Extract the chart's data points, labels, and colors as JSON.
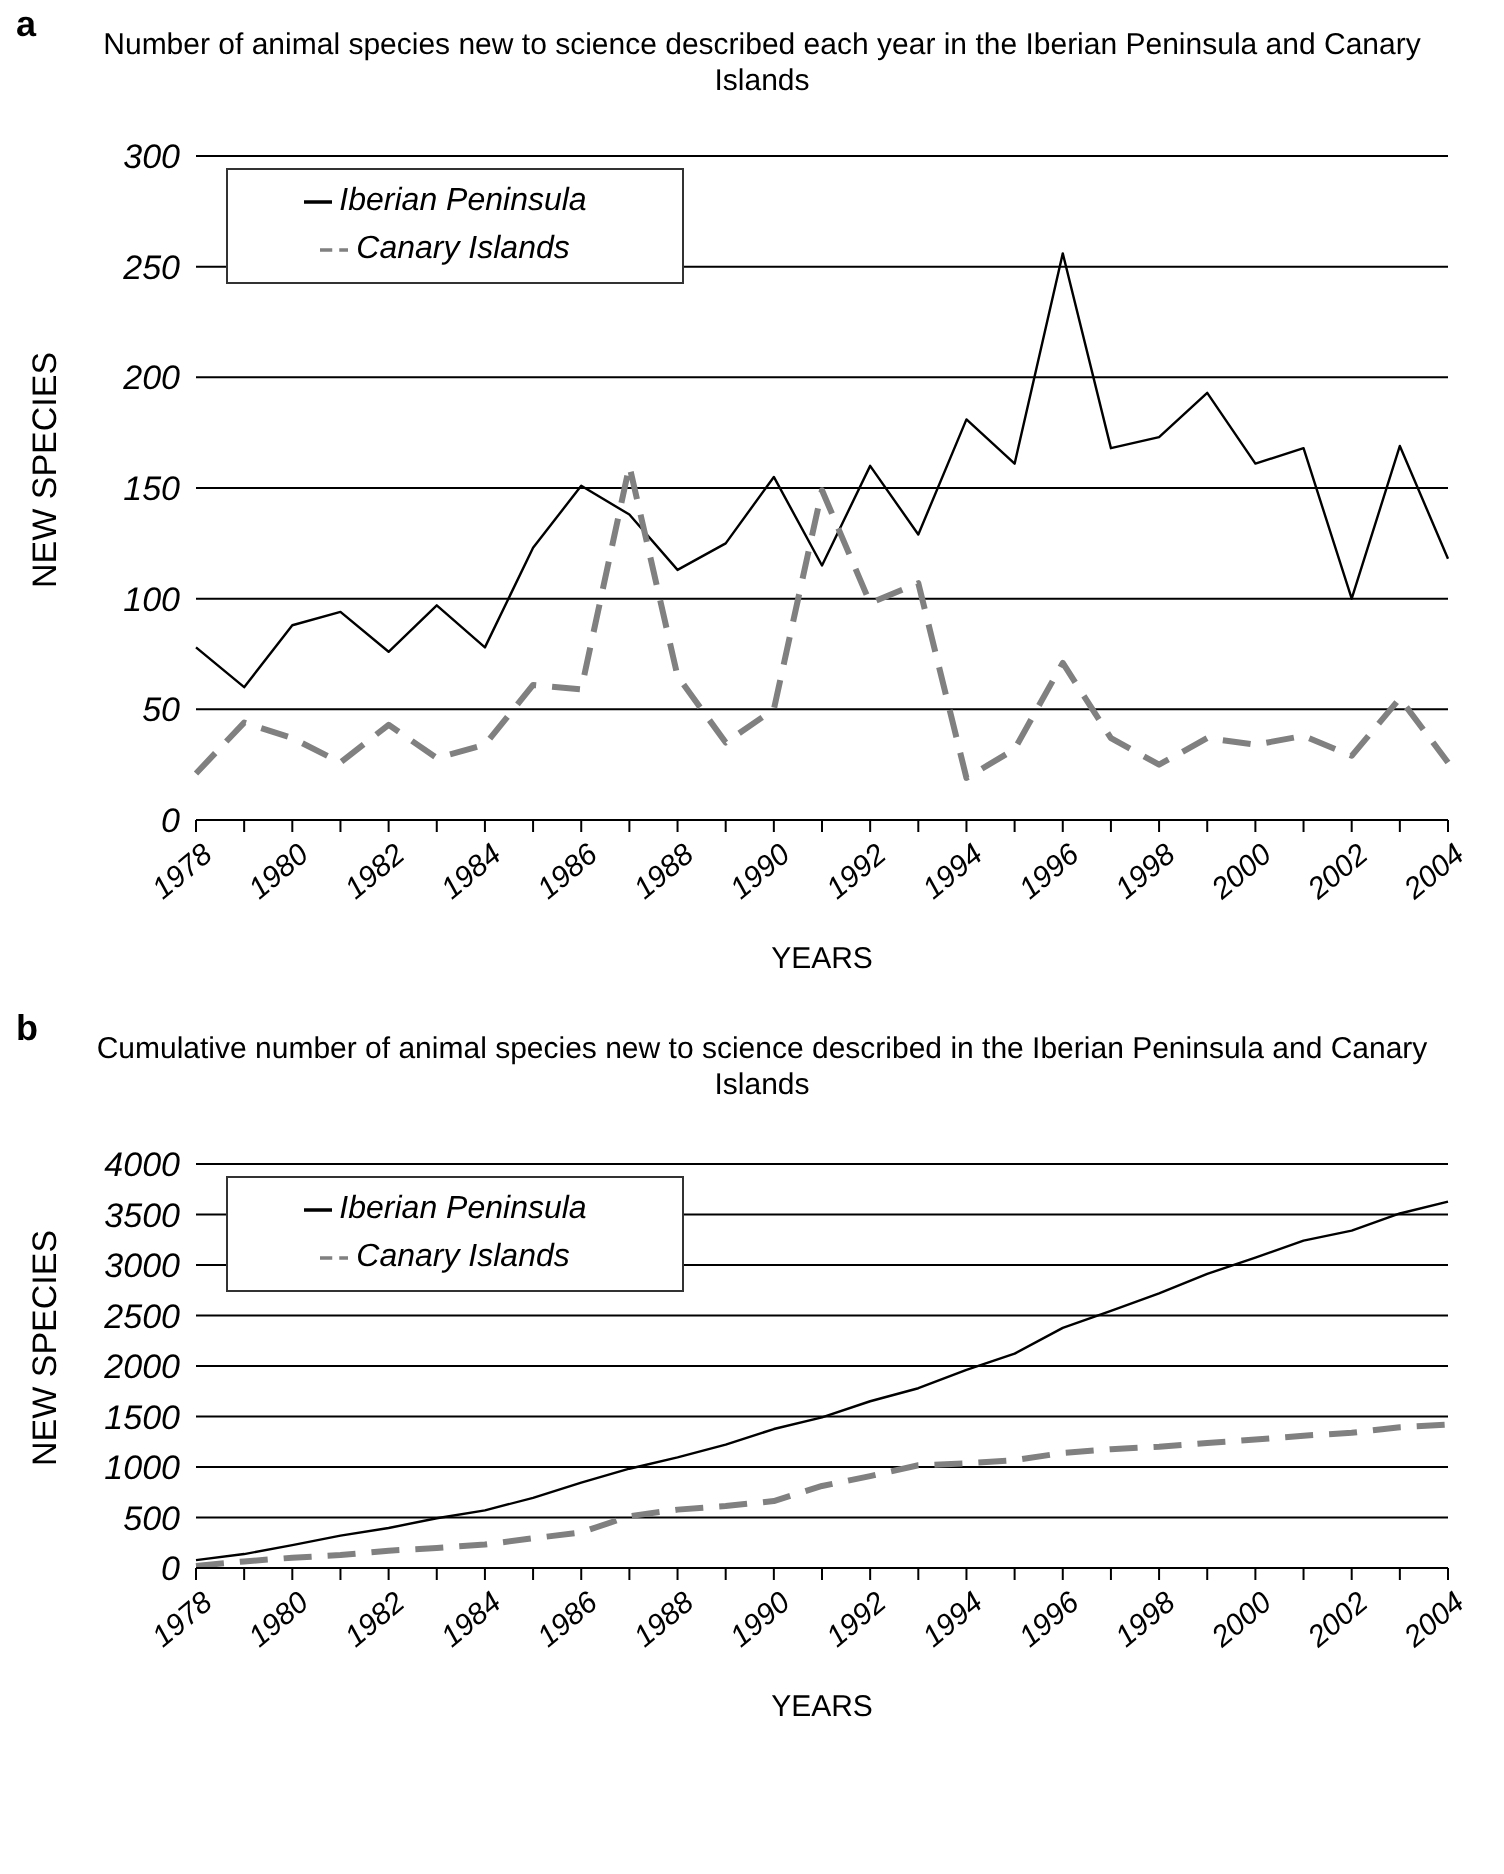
{
  "chart_data": [
    {
      "type": "line",
      "title": "Number of animal species new to science described each year in the Iberian Peninsula and Canary Islands",
      "xlabel": "YEARS",
      "ylabel": "NEW SPECIES",
      "annotations": [
        "a"
      ],
      "categories": [
        "1978",
        null,
        "1980",
        null,
        "1982",
        null,
        "1984",
        null,
        "1986",
        null,
        "1988",
        null,
        "1990",
        null,
        "1992",
        null,
        "1994",
        null,
        "1996",
        null,
        "1998",
        null,
        "2000",
        null,
        "2002",
        null,
        "2004"
      ],
      "series": [
        {
          "name": "Iberian Peninsula",
          "color": "#000000",
          "line_style": "solid",
          "values": [
            78,
            60,
            88,
            94,
            76,
            97,
            78,
            123,
            151,
            138,
            113,
            125,
            155,
            115,
            160,
            129,
            181,
            161,
            256,
            168,
            173,
            193,
            161,
            168,
            100,
            169,
            118
          ]
        },
        {
          "name": "Canary Islands",
          "color": "#808080",
          "line_style": "dashed",
          "values": [
            21,
            44,
            37,
            26,
            43,
            28,
            34,
            61,
            59,
            160,
            65,
            35,
            50,
            149,
            98,
            107,
            19,
            32,
            71,
            37,
            25,
            37,
            34,
            38,
            29,
            55,
            26
          ]
        }
      ],
      "ylim": [
        0,
        300
      ],
      "yticks": [
        0,
        50,
        100,
        150,
        200,
        250,
        300
      ],
      "grid": "y",
      "legend": "top left",
      "marker": "none"
    },
    {
      "type": "line",
      "title": "Cumulative number of animal species new to science  described in the Iberian Peninsula and Canary Islands",
      "xlabel": "YEARS",
      "ylabel": "NEW SPECIES",
      "annotations": [
        "b"
      ],
      "categories": [
        "1978",
        null,
        "1980",
        null,
        "1982",
        null,
        "1984",
        null,
        "1986",
        null,
        "1988",
        null,
        "1990",
        null,
        "1992",
        null,
        "1994",
        null,
        "1996",
        null,
        "1998",
        null,
        "2000",
        null,
        "2002",
        null,
        "2004"
      ],
      "series": [
        {
          "name": "Iberian Peninsula",
          "color": "#000000",
          "line_style": "solid",
          "values": [
            78,
            138,
            226,
            320,
            396,
            493,
            571,
            694,
            845,
            983,
            1096,
            1221,
            1376,
            1491,
            1651,
            1780,
            1961,
            2122,
            2378,
            2546,
            2719,
            2912,
            3073,
            3241,
            3341,
            3510,
            3628
          ]
        },
        {
          "name": "Canary Islands",
          "color": "#808080",
          "line_style": "dashed",
          "values": [
            21,
            65,
            102,
            128,
            171,
            199,
            233,
            294,
            353,
            513,
            578,
            613,
            663,
            812,
            910,
            1017,
            1036,
            1068,
            1139,
            1176,
            1201,
            1238,
            1272,
            1310,
            1339,
            1394,
            1420
          ]
        }
      ],
      "ylim": [
        0,
        4000
      ],
      "yticks": [
        0,
        500,
        1000,
        1500,
        2000,
        2500,
        3000,
        3500,
        4000
      ],
      "grid": "y",
      "legend": "top left",
      "marker": "none"
    }
  ]
}
